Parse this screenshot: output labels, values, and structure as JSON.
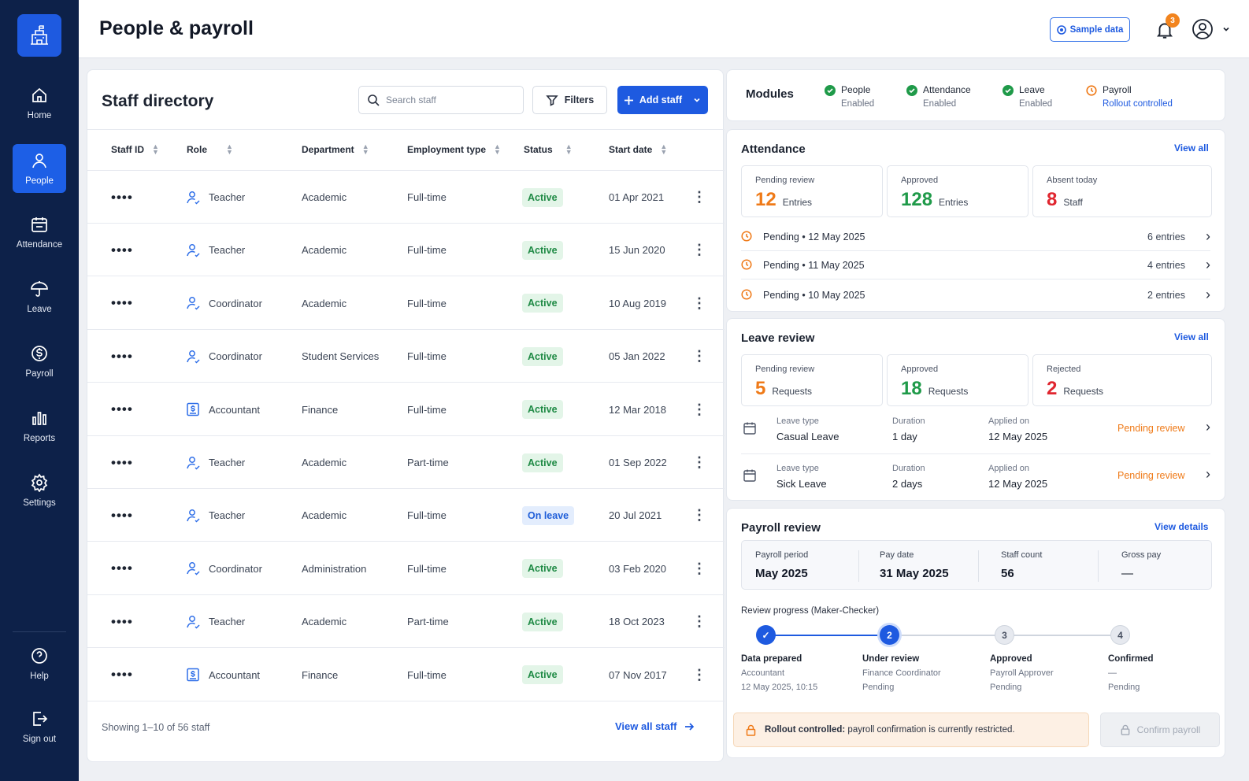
{
  "nav": {
    "items": [
      {
        "label": "Home",
        "icon": "home-icon"
      },
      {
        "label": "People",
        "icon": "person-icon"
      },
      {
        "label": "Attendance",
        "icon": "calendar-icon"
      },
      {
        "label": "Leave",
        "icon": "umbrella-icon"
      },
      {
        "label": "Payroll",
        "icon": "dollar-icon"
      },
      {
        "label": "Reports",
        "icon": "bar-chart-icon"
      },
      {
        "label": "Settings",
        "icon": "gear-icon"
      }
    ],
    "help": "Help",
    "signout": "Sign out"
  },
  "header": {
    "title": "People & payroll",
    "sample_data": "Sample data",
    "notification_count": "3"
  },
  "directory": {
    "title": "Staff directory",
    "search_placeholder": "Search staff",
    "filters": "Filters",
    "add_staff": "Add staff",
    "columns": [
      "Staff ID",
      "Role",
      "Department",
      "Employment type",
      "Status",
      "Start date"
    ],
    "rows": [
      {
        "id": "••••",
        "role": "Teacher",
        "role_icon": "person-icon",
        "dept": "Academic",
        "type": "Full-time",
        "status": "Active",
        "start": "01 Apr 2021"
      },
      {
        "id": "••••",
        "role": "Teacher",
        "role_icon": "person-icon",
        "dept": "Academic",
        "type": "Full-time",
        "status": "Active",
        "start": "15 Jun 2020"
      },
      {
        "id": "••••",
        "role": "Coordinator",
        "role_icon": "person-icon",
        "dept": "Academic",
        "type": "Full-time",
        "status": "Active",
        "start": "10 Aug 2019"
      },
      {
        "id": "••••",
        "role": "Coordinator",
        "role_icon": "person-icon",
        "dept": "Student Services",
        "type": "Full-time",
        "status": "Active",
        "start": "05 Jan 2022"
      },
      {
        "id": "••••",
        "role": "Accountant",
        "role_icon": "dollar-doc-icon",
        "dept": "Finance",
        "type": "Full-time",
        "status": "Active",
        "start": "12 Mar 2018"
      },
      {
        "id": "••••",
        "role": "Teacher",
        "role_icon": "person-icon",
        "dept": "Academic",
        "type": "Part-time",
        "status": "Active",
        "start": "01 Sep 2022"
      },
      {
        "id": "••••",
        "role": "Teacher",
        "role_icon": "person-icon",
        "dept": "Academic",
        "type": "Full-time",
        "status": "On leave",
        "start": "20 Jul 2021"
      },
      {
        "id": "••••",
        "role": "Coordinator",
        "role_icon": "person-icon",
        "dept": "Administration",
        "type": "Full-time",
        "status": "Active",
        "start": "03 Feb 2020"
      },
      {
        "id": "••••",
        "role": "Teacher",
        "role_icon": "person-icon",
        "dept": "Academic",
        "type": "Part-time",
        "status": "Active",
        "start": "18 Oct 2023"
      },
      {
        "id": "••••",
        "role": "Accountant",
        "role_icon": "dollar-doc-icon",
        "dept": "Finance",
        "type": "Full-time",
        "status": "Active",
        "start": "07 Nov 2017"
      }
    ],
    "footer": "Showing 1–10 of 56 staff",
    "view_all": "View all staff"
  },
  "modules": {
    "title": "Modules",
    "items": [
      {
        "name": "People",
        "state": "Enabled"
      },
      {
        "name": "Attendance",
        "state": "Enabled"
      },
      {
        "name": "Leave",
        "state": "Enabled"
      },
      {
        "name": "Payroll",
        "state": "Rollout controlled"
      }
    ]
  },
  "attendance": {
    "title": "Attendance",
    "view_all": "View all",
    "stats": [
      {
        "label": "Pending review",
        "value": "12",
        "unit": "Entries"
      },
      {
        "label": "Approved",
        "value": "128",
        "unit": "Entries"
      },
      {
        "label": "Absent today",
        "value": "8",
        "unit": "Staff"
      }
    ],
    "pending": [
      {
        "label": "Pending • 12 May 2025",
        "count": "6 entries"
      },
      {
        "label": "Pending • 11 May 2025",
        "count": "4 entries"
      },
      {
        "label": "Pending • 10 May 2025",
        "count": "2 entries"
      }
    ]
  },
  "leave": {
    "title": "Leave review",
    "view_all": "View all",
    "stats": [
      {
        "label": "Pending review",
        "value": "5",
        "unit": "Requests"
      },
      {
        "label": "Approved",
        "value": "18",
        "unit": "Requests"
      },
      {
        "label": "Rejected",
        "value": "2",
        "unit": "Requests"
      }
    ],
    "keys": {
      "type": "Leave type",
      "duration": "Duration",
      "applied": "Applied on"
    },
    "requests": [
      {
        "type": "Casual Leave",
        "duration": "1 day",
        "applied": "12 May 2025",
        "status": "Pending review"
      },
      {
        "type": "Sick Leave",
        "duration": "2 days",
        "applied": "12 May 2025",
        "status": "Pending review"
      }
    ]
  },
  "payroll": {
    "title": "Payroll review",
    "view_details": "View details",
    "fields": [
      {
        "label": "Payroll period",
        "value": "May 2025"
      },
      {
        "label": "Pay date",
        "value": "31 May 2025"
      },
      {
        "label": "Staff count",
        "value": "56"
      },
      {
        "label": "Gross pay",
        "value": "—"
      }
    ],
    "progress_label": "Review progress (Maker-Checker)",
    "steps": [
      {
        "num": "✓",
        "title": "Data prepared",
        "line1": "Accountant",
        "line2": "12 May 2025, 10:15"
      },
      {
        "num": "2",
        "title": "Under review",
        "line1": "Finance Coordinator",
        "line2": "Pending"
      },
      {
        "num": "3",
        "title": "Approved",
        "line1": "Payroll Approver",
        "line2": "Pending"
      },
      {
        "num": "4",
        "title": "Confirmed",
        "line1": "—",
        "line2": "Pending"
      }
    ],
    "banner_bold": "Rollout controlled:",
    "banner_text": "payroll confirmation is currently restricted.",
    "confirm": "Confirm payroll"
  },
  "colors": {
    "sidebar": "#0d2149",
    "accent": "#1e5ae0",
    "orange": "#ef7a18",
    "green": "#1f9a49",
    "red": "#e0262f"
  }
}
